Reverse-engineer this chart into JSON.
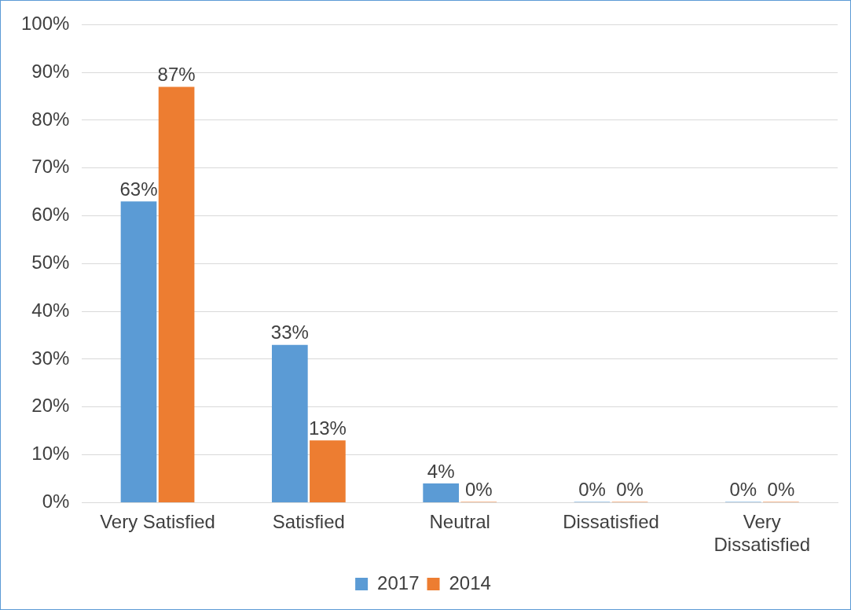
{
  "chart_data": {
    "type": "bar",
    "categories": [
      "Very Satisfied",
      "Satisfied",
      "Neutral",
      "Dissatisfied",
      "Very Dissatisfied"
    ],
    "series": [
      {
        "name": "2017",
        "color": "#5b9bd5",
        "values": [
          63,
          33,
          4,
          0,
          0
        ],
        "value_labels": [
          "63%",
          "33%",
          "4%",
          "0%",
          "0%"
        ]
      },
      {
        "name": "2014",
        "color": "#ed7d31",
        "values": [
          87,
          13,
          0,
          0,
          0
        ],
        "value_labels": [
          "87%",
          "13%",
          "0%",
          "0%",
          "0%"
        ]
      }
    ],
    "ylim": [
      0,
      100
    ],
    "yticks": [
      {
        "value": 0,
        "label": "0%"
      },
      {
        "value": 10,
        "label": "10%"
      },
      {
        "value": 20,
        "label": "20%"
      },
      {
        "value": 30,
        "label": "30%"
      },
      {
        "value": 40,
        "label": "40%"
      },
      {
        "value": 50,
        "label": "50%"
      },
      {
        "value": 60,
        "label": "60%"
      },
      {
        "value": 70,
        "label": "70%"
      },
      {
        "value": 80,
        "label": "80%"
      },
      {
        "value": 90,
        "label": "90%"
      },
      {
        "value": 100,
        "label": "100%"
      }
    ],
    "grid": "y",
    "legend": "bottom"
  }
}
